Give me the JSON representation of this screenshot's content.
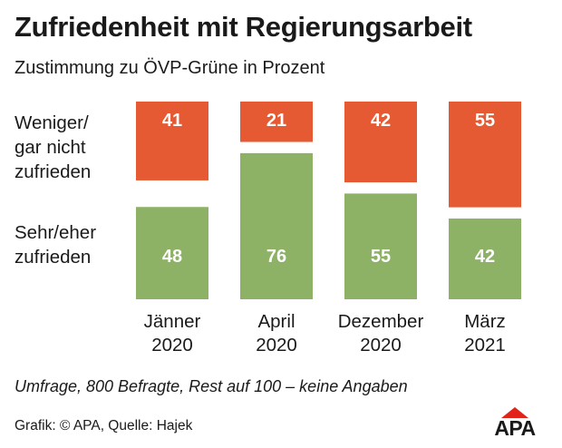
{
  "title": "Zufriedenheit mit Regierungsarbeit",
  "subtitle": "Zustimmung zu ÖVP-Grüne in Prozent",
  "row_labels": {
    "top": "Weniger/\ngar nicht\nzufrieden",
    "bottom": "Sehr/eher\nzufrieden"
  },
  "footnote": "Umfrage, 800 Befragte, Rest auf 100 – keine Angaben",
  "source": "Grafik: © APA, Quelle: Hajek",
  "logo": {
    "text": "APA"
  },
  "colors": {
    "unsatisfied": "#e55a32",
    "satisfied": "#8db266",
    "logo_accent": "#e2231a"
  },
  "chart_data": {
    "type": "bar",
    "stacked": true,
    "categories": [
      "Jänner\n2020",
      "April\n2020",
      "Dezember\n2020",
      "März\n2021"
    ],
    "series": [
      {
        "name": "Weniger/gar nicht zufrieden",
        "values": [
          41,
          21,
          42,
          55
        ]
      },
      {
        "name": "Sehr/eher zufrieden",
        "values": [
          48,
          76,
          55,
          42
        ]
      }
    ],
    "ylim": [
      0,
      100
    ],
    "grid": false,
    "legend": "row labels on left"
  }
}
